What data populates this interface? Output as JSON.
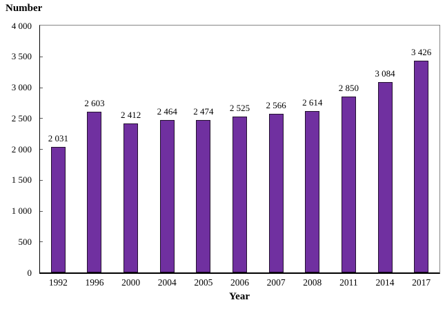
{
  "chart_data": {
    "type": "bar",
    "categories": [
      "1992",
      "1996",
      "2000",
      "2004",
      "2005",
      "2006",
      "2007",
      "2008",
      "2011",
      "2014",
      "2017"
    ],
    "values": [
      2031,
      2603,
      2412,
      2464,
      2474,
      2525,
      2566,
      2614,
      2850,
      3084,
      3426
    ],
    "data_labels": [
      "2 031",
      "2 603",
      "2 412",
      "2 464",
      "2 474",
      "2 525",
      "2 566",
      "2 614",
      "2 850",
      "3 084",
      "3 426"
    ],
    "title": "",
    "xlabel": "Year",
    "ylabel": "Number",
    "ylim": [
      0,
      4000
    ],
    "ytick_step": 500,
    "ytick_labels": [
      "0",
      "500",
      "1 000",
      "1 500",
      "2 000",
      "2 500",
      "3 000",
      "3 500",
      "4 000"
    ],
    "grid": false,
    "legend": "none",
    "bar_color": "#7030A0",
    "bar_border_color": "#22102e",
    "axis_color": "#000000",
    "plot_border_color": "#848484"
  }
}
